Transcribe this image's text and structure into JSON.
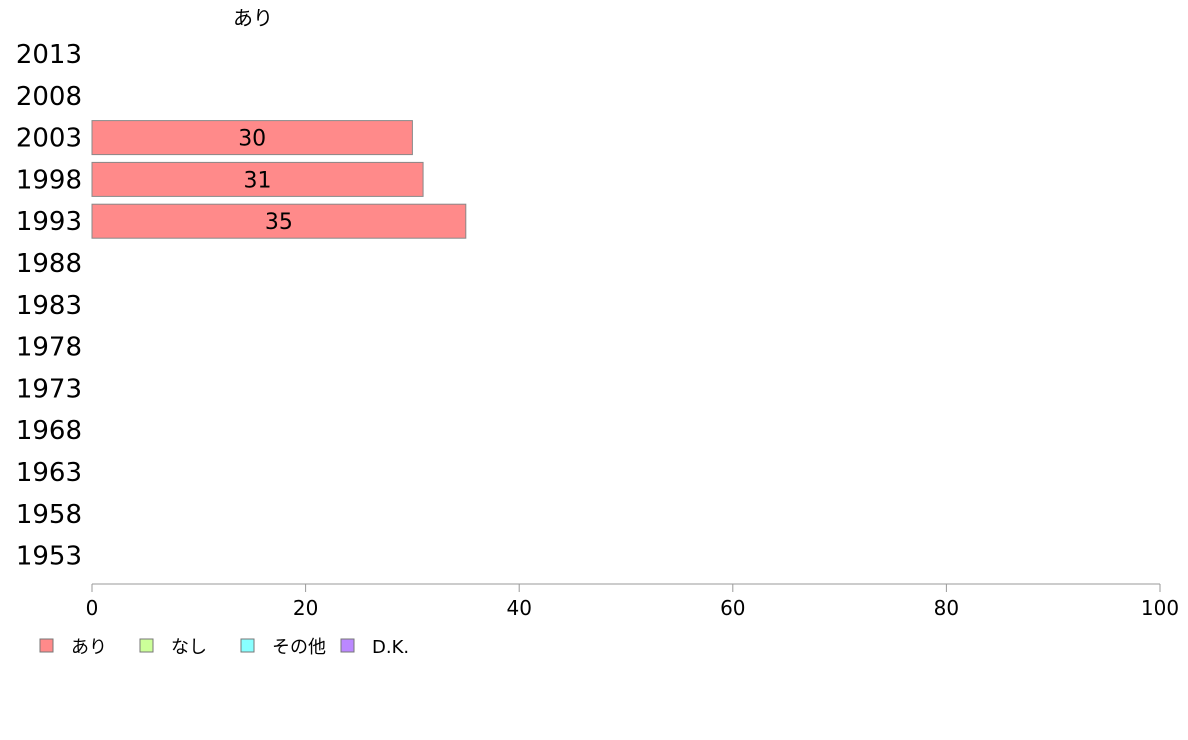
{
  "chart_data": {
    "type": "bar",
    "orientation": "horizontal",
    "stacked": true,
    "top_label": "あり",
    "categories": [
      "2013",
      "2008",
      "2003",
      "1998",
      "1993",
      "1988",
      "1983",
      "1978",
      "1973",
      "1968",
      "1963",
      "1958",
      "1953"
    ],
    "series": [
      {
        "name": "あり",
        "color": "#ff8a8a",
        "values": [
          null,
          null,
          30,
          31,
          35,
          null,
          null,
          null,
          null,
          null,
          null,
          null,
          null
        ]
      },
      {
        "name": "なし",
        "color": "#ccff99",
        "values": [
          null,
          null,
          null,
          null,
          null,
          null,
          null,
          null,
          null,
          null,
          null,
          null,
          null
        ]
      },
      {
        "name": "その他",
        "color": "#88ffff",
        "values": [
          null,
          null,
          null,
          null,
          null,
          null,
          null,
          null,
          null,
          null,
          null,
          null,
          null
        ]
      },
      {
        "name": "D.K.",
        "color": "#bb88ff",
        "values": [
          null,
          null,
          null,
          null,
          null,
          null,
          null,
          null,
          null,
          null,
          null,
          null,
          null
        ]
      }
    ],
    "xlim": [
      0,
      100
    ],
    "xticks": [
      "0",
      "20",
      "40",
      "60",
      "80",
      "100"
    ],
    "grid": false,
    "legend_position": "bottom-left"
  }
}
